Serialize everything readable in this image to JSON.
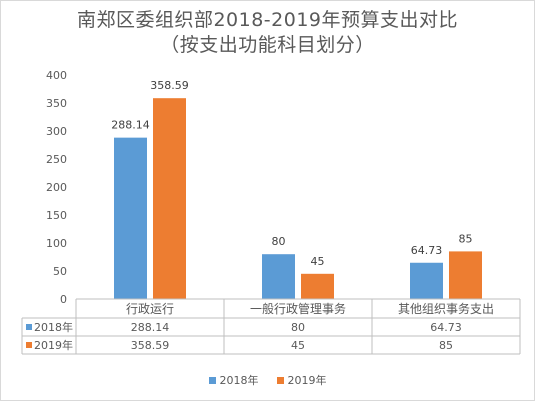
{
  "chart_data": {
    "type": "bar",
    "title": "南郑区委组织部2018-2019年预算支出对比",
    "subtitle": "（按支出功能科目划分）",
    "categories": [
      "行政运行",
      "一般行政管理事务",
      "其他组织事务支出"
    ],
    "series": [
      {
        "name": "2018年",
        "values": [
          288.14,
          80,
          64.73
        ],
        "labels": [
          "288.14",
          "80",
          "64.73"
        ],
        "color": "#5b9bd5"
      },
      {
        "name": "2019年",
        "values": [
          358.59,
          45,
          85
        ],
        "labels": [
          "358.59",
          "45",
          "85"
        ],
        "color": "#ed7d31"
      }
    ],
    "yticks": [
      "0",
      "50",
      "100",
      "150",
      "200",
      "250",
      "300",
      "350",
      "400"
    ],
    "ylim": [
      0,
      400
    ],
    "grid": false,
    "data_table": true,
    "legend_position": "bottom"
  }
}
